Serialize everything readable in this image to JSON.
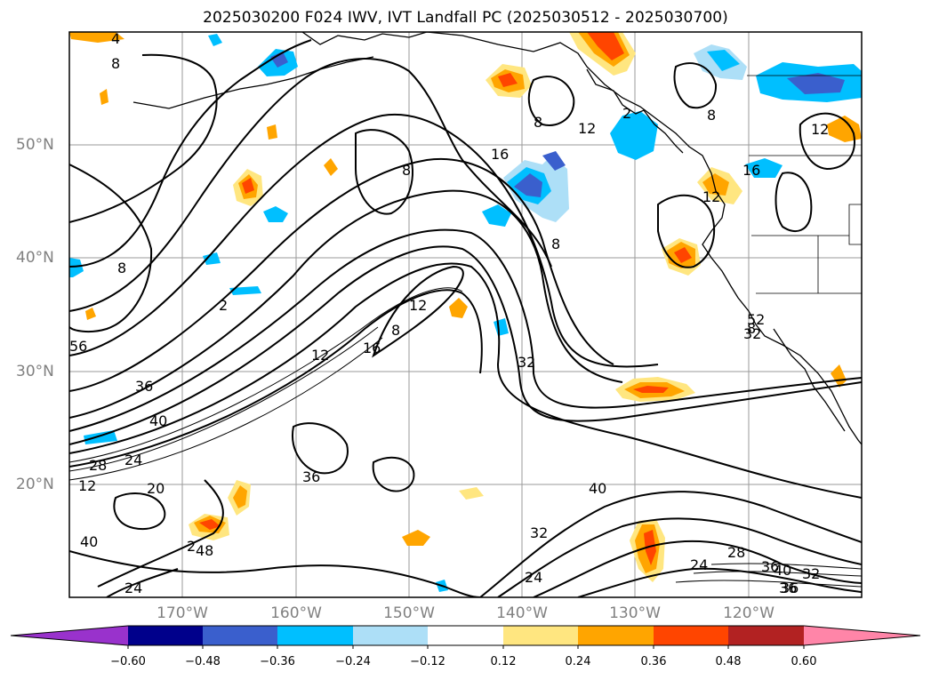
{
  "title": "2025030200 F024 IWV, IVT Landfall PC (2025030512 - 2025030700)",
  "lat_labels": [
    "50°N",
    "40°N",
    "30°N",
    "20°N"
  ],
  "lon_labels": [
    "170°W",
    "160°W",
    "150°W",
    "140°W",
    "130°W",
    "120°W"
  ],
  "contour_labels": [
    "4",
    "8",
    "12",
    "16",
    "8",
    "8",
    "8",
    "12",
    "16",
    "12",
    "8",
    "8",
    "2",
    "12",
    "12",
    "16",
    "8",
    "32",
    "36",
    "40",
    "24",
    "28",
    "12",
    "20",
    "36",
    "40",
    "32",
    "24",
    "24",
    "24",
    "28",
    "36",
    "36",
    "40",
    "32",
    "36",
    "40",
    "48",
    "52",
    "56",
    "32",
    "2",
    "2",
    "8"
  ],
  "colorbar": {
    "ticks": [
      "−0.60",
      "−0.48",
      "−0.36",
      "−0.24",
      "−0.12",
      "0.12",
      "0.24",
      "0.36",
      "0.48",
      "0.60"
    ],
    "colors": [
      "#9932CC",
      "#00008B",
      "#3A5FCD",
      "#00BFFF",
      "#ADDFF7",
      "#FFFFFF",
      "#FFE680",
      "#FFA500",
      "#FF4500",
      "#B22222",
      "#FF85A8"
    ]
  }
}
